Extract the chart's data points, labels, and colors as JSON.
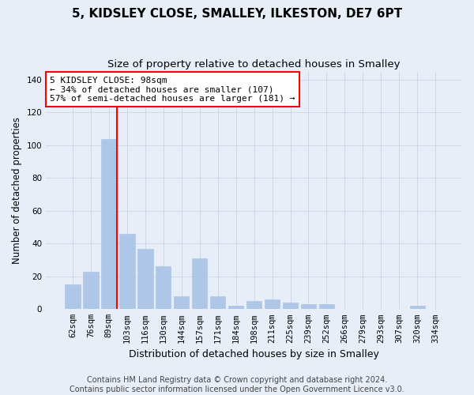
{
  "title": "5, KIDSLEY CLOSE, SMALLEY, ILKESTON, DE7 6PT",
  "subtitle": "Size of property relative to detached houses in Smalley",
  "xlabel": "Distribution of detached houses by size in Smalley",
  "ylabel": "Number of detached properties",
  "categories": [
    "62sqm",
    "76sqm",
    "89sqm",
    "103sqm",
    "116sqm",
    "130sqm",
    "144sqm",
    "157sqm",
    "171sqm",
    "184sqm",
    "198sqm",
    "211sqm",
    "225sqm",
    "239sqm",
    "252sqm",
    "266sqm",
    "279sqm",
    "293sqm",
    "307sqm",
    "320sqm",
    "334sqm"
  ],
  "values": [
    15,
    23,
    104,
    46,
    37,
    26,
    8,
    31,
    8,
    2,
    5,
    6,
    4,
    3,
    3,
    0,
    0,
    0,
    0,
    2,
    0
  ],
  "bar_color": "#aec6e8",
  "bar_edge_color": "#aec6e8",
  "grid_color": "#d0d8e8",
  "background_color": "#e8eef8",
  "vline_index": 2,
  "vline_color": "red",
  "annotation_line1": "5 KIDSLEY CLOSE: 98sqm",
  "annotation_line2": "← 34% of detached houses are smaller (107)",
  "annotation_line3": "57% of semi-detached houses are larger (181) →",
  "annotation_box_color": "white",
  "annotation_box_edge_color": "red",
  "ylim": [
    0,
    145
  ],
  "yticks": [
    0,
    20,
    40,
    60,
    80,
    100,
    120,
    140
  ],
  "footer_line1": "Contains HM Land Registry data © Crown copyright and database right 2024.",
  "footer_line2": "Contains public sector information licensed under the Open Government Licence v3.0.",
  "title_fontsize": 11,
  "subtitle_fontsize": 9.5,
  "xlabel_fontsize": 9,
  "ylabel_fontsize": 8.5,
  "tick_fontsize": 7.5,
  "footer_fontsize": 7,
  "annotation_fontsize": 8
}
